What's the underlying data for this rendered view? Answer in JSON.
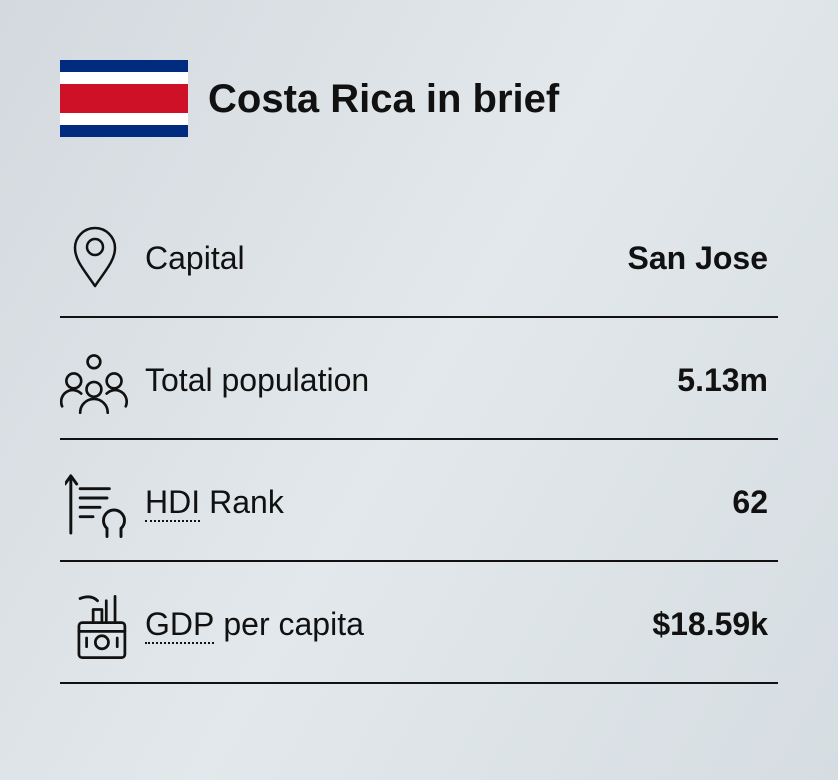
{
  "header": {
    "title": "Costa Rica in brief"
  },
  "rows": [
    {
      "label": "Capital",
      "value": "San Jose"
    },
    {
      "label": "Total population",
      "value": "5.13m"
    },
    {
      "abbr": "HDI",
      "label": "Rank",
      "value": "62"
    },
    {
      "abbr": "GDP",
      "label": "per capita",
      "value": "$18.59k"
    }
  ]
}
